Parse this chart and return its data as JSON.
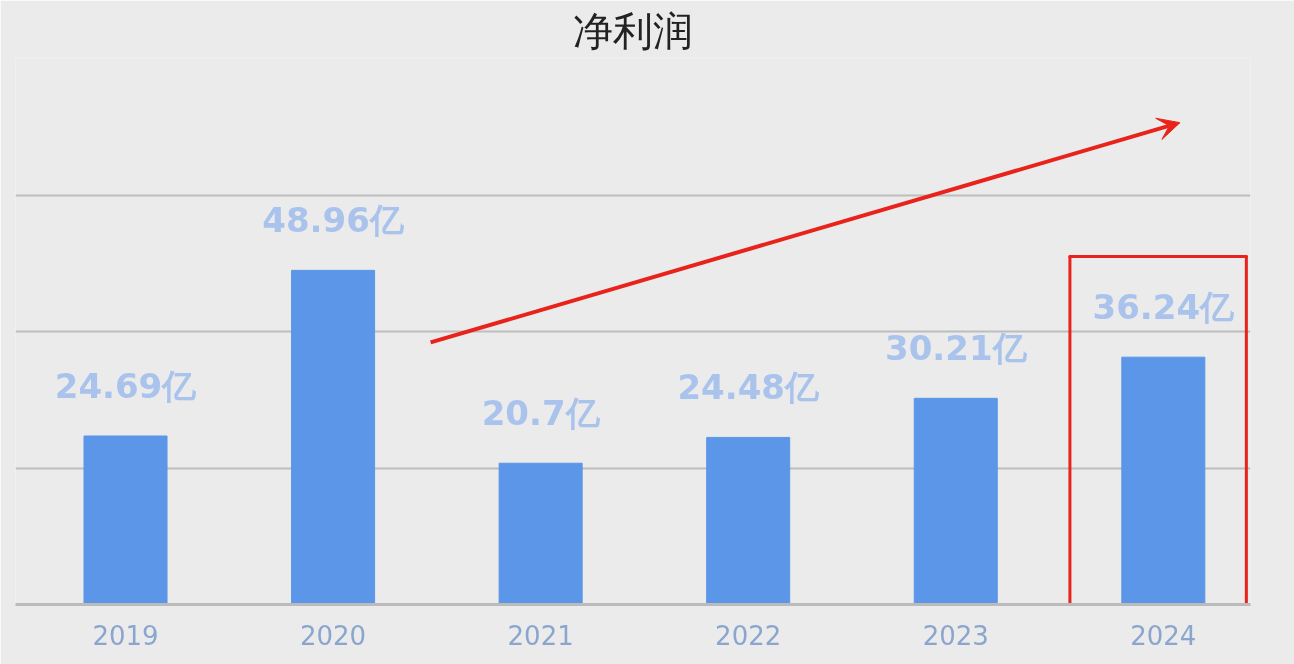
{
  "chart_data": {
    "type": "bar",
    "title": "净利润",
    "categories": [
      "2019",
      "2020",
      "2021",
      "2022",
      "2023",
      "2024"
    ],
    "values": [
      24.69,
      48.96,
      20.7,
      24.48,
      30.21,
      36.24
    ],
    "value_labels": [
      "24.69亿",
      "48.96亿",
      "20.7亿",
      "24.48亿",
      "30.21亿",
      "36.24亿"
    ],
    "color": "#5b96e8",
    "ylim": [
      0,
      80
    ],
    "yticks": [
      {
        "value": 0,
        "label": null
      },
      {
        "value": 20,
        "label": null
      },
      {
        "value": 40,
        "label": null
      },
      {
        "value": 60,
        "label": null
      }
    ],
    "grid": "y",
    "tick_labels": "x"
  }
}
